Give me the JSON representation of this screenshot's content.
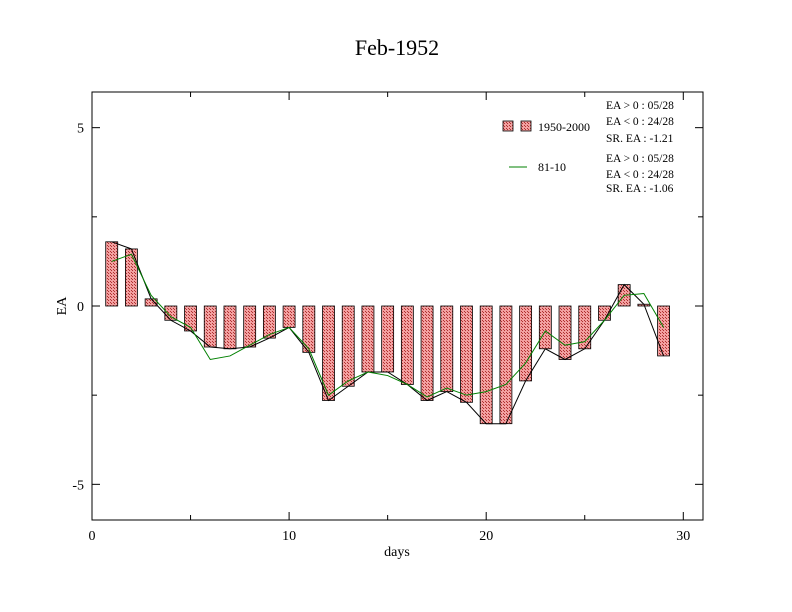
{
  "chart_data": {
    "type": "bar",
    "title": "Feb-1952",
    "xlabel": "days",
    "ylabel": "EA",
    "xlim": [
      0,
      31
    ],
    "ylim": [
      -6,
      6
    ],
    "x_ticks": [
      0,
      10,
      20,
      30
    ],
    "y_ticks": [
      -5,
      0,
      5
    ],
    "x_tick_labels": [
      "0",
      "10",
      "20",
      "30"
    ],
    "y_tick_labels": [
      "-5",
      "0",
      "5"
    ],
    "grid": false,
    "legend_position": "top-right",
    "series": [
      {
        "name": "1950-2000",
        "type": "bar",
        "color": "#e06666",
        "pattern": "hatched",
        "x": [
          1,
          2,
          3,
          4,
          5,
          6,
          7,
          8,
          9,
          10,
          11,
          12,
          13,
          14,
          15,
          16,
          17,
          18,
          19,
          20,
          21,
          22,
          23,
          24,
          25,
          26,
          27,
          28,
          29
        ],
        "values": [
          1.8,
          1.6,
          0.2,
          -0.4,
          -0.7,
          -1.15,
          -1.2,
          -1.15,
          -0.9,
          -0.6,
          -1.3,
          -2.65,
          -2.25,
          -1.85,
          -1.85,
          -2.2,
          -2.65,
          -2.4,
          -2.7,
          -3.3,
          -3.3,
          -2.1,
          -1.2,
          -1.5,
          -1.2,
          -0.4,
          0.6,
          0.05,
          -1.4
        ]
      },
      {
        "name": "81-10",
        "type": "line",
        "color": "#008000",
        "x": [
          1,
          2,
          3,
          4,
          5,
          6,
          7,
          8,
          9,
          10,
          11,
          12,
          13,
          14,
          15,
          16,
          17,
          18,
          19,
          20,
          21,
          22,
          23,
          24,
          25,
          26,
          27,
          28,
          29
        ],
        "values": [
          1.25,
          1.45,
          0.3,
          -0.3,
          -0.6,
          -1.5,
          -1.4,
          -1.1,
          -0.8,
          -0.6,
          -1.2,
          -2.5,
          -2.1,
          -1.85,
          -1.95,
          -2.2,
          -2.55,
          -2.3,
          -2.5,
          -2.4,
          -2.2,
          -1.6,
          -0.7,
          -1.1,
          -1.0,
          -0.4,
          0.3,
          0.35,
          -0.6
        ]
      }
    ],
    "anomaly_line": {
      "color": "#000000",
      "x": [
        1,
        2,
        3,
        4,
        5,
        6,
        7,
        8,
        9,
        10,
        11,
        12,
        13,
        14,
        15,
        16,
        17,
        18,
        19,
        20,
        21,
        22,
        23,
        24,
        25,
        26,
        27,
        28,
        29
      ],
      "values": [
        1.8,
        1.6,
        0.2,
        -0.4,
        -0.7,
        -1.15,
        -1.2,
        -1.15,
        -0.9,
        -0.6,
        -1.3,
        -2.65,
        -2.25,
        -1.85,
        -1.85,
        -2.2,
        -2.65,
        -2.4,
        -2.7,
        -3.3,
        -3.3,
        -2.1,
        -1.2,
        -1.5,
        -1.2,
        -0.4,
        0.6,
        0.05,
        -1.4
      ]
    },
    "annotations": {
      "stats_1950": [
        "EA > 0 : 05/28",
        "EA < 0 : 24/28",
        "SR. EA : -1.21"
      ],
      "stats_8110": [
        "EA > 0 : 05/28",
        "EA < 0 : 24/28",
        "SR. EA : -1.06"
      ]
    }
  }
}
